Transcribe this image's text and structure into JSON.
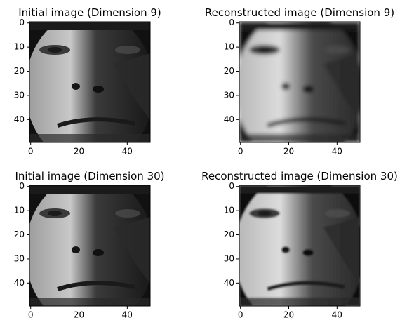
{
  "chart_data": [
    {
      "type": "image",
      "title": "Initial image (Dimension 9)",
      "xlim": [
        -0.5,
        49.5
      ],
      "ylim": [
        49.5,
        -0.5
      ],
      "xticks": [
        0,
        20,
        40
      ],
      "yticks": [
        0,
        10,
        20,
        30,
        40
      ]
    },
    {
      "type": "image",
      "title": "Reconstructed image (Dimension 9)",
      "xlim": [
        -0.5,
        49.5
      ],
      "ylim": [
        49.5,
        -0.5
      ],
      "xticks": [
        0,
        20,
        40
      ],
      "yticks": [
        0,
        10,
        20,
        30,
        40
      ]
    },
    {
      "type": "image",
      "title": "Initial image (Dimension 30)",
      "xlim": [
        -0.5,
        49.5
      ],
      "ylim": [
        49.5,
        -0.5
      ],
      "xticks": [
        0,
        20,
        40
      ],
      "yticks": [
        0,
        10,
        20,
        30,
        40
      ]
    },
    {
      "type": "image",
      "title": "Reconstructed image (Dimension 30)",
      "xlim": [
        -0.5,
        49.5
      ],
      "ylim": [
        49.5,
        -0.5
      ],
      "xticks": [
        0,
        20,
        40
      ],
      "yticks": [
        0,
        10,
        20,
        30,
        40
      ]
    }
  ]
}
